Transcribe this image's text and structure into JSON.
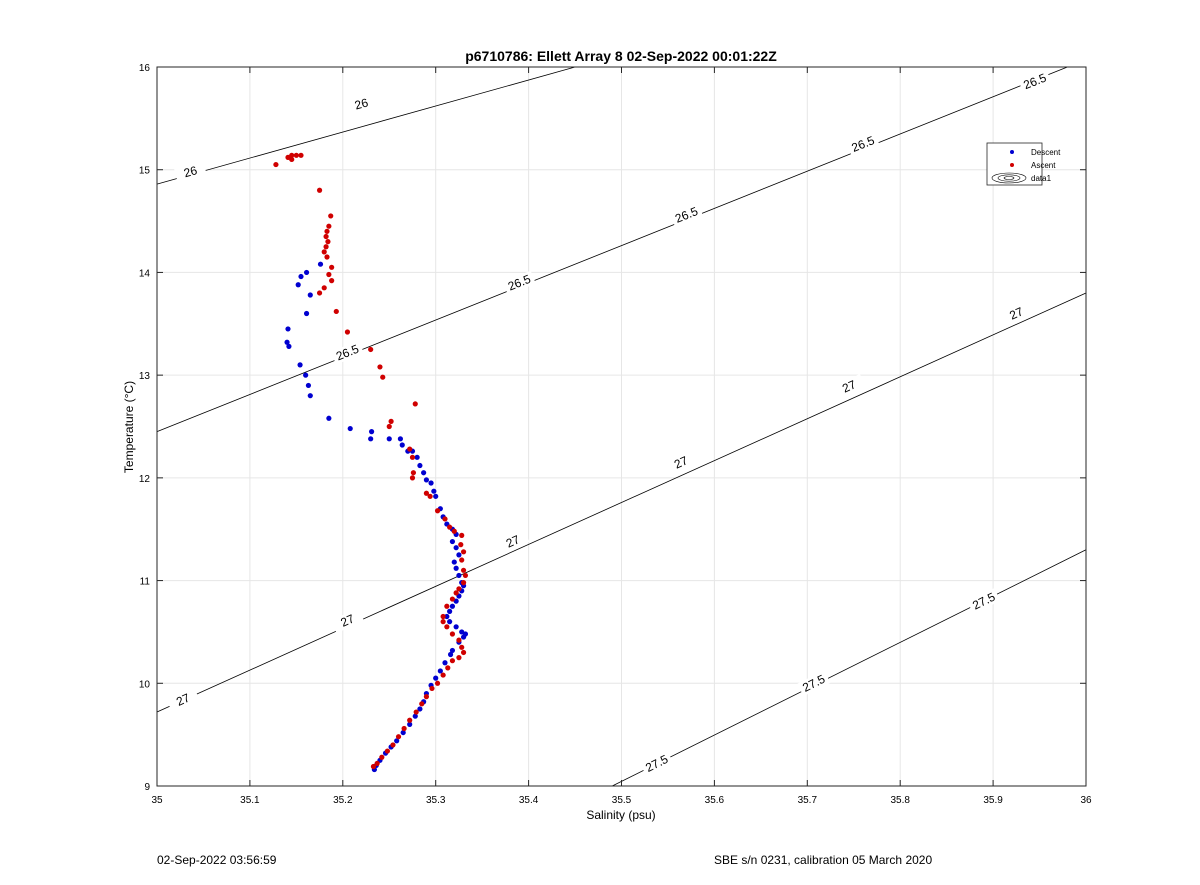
{
  "chart_data": {
    "type": "scatter",
    "title": "p6710786: Ellett Array 8 02-Sep-2022 00:01:22Z",
    "xlabel": "Salinity (psu)",
    "ylabel": "Temperature (°C)",
    "xlim": [
      35,
      36
    ],
    "ylim": [
      9,
      16
    ],
    "xticks": [
      35,
      35.1,
      35.2,
      35.3,
      35.4,
      35.5,
      35.6,
      35.7,
      35.8,
      35.9,
      36
    ],
    "yticks": [
      9,
      10,
      11,
      12,
      13,
      14,
      15,
      16
    ],
    "xtick_labels": [
      "35",
      "35.1",
      "35.2",
      "35.3",
      "35.4",
      "35.5",
      "35.6",
      "35.7",
      "35.8",
      "35.9",
      "36"
    ],
    "ytick_labels": [
      "9",
      "10",
      "11",
      "12",
      "13",
      "14",
      "15",
      "16"
    ],
    "grid": true,
    "legend_position": "top-right",
    "legend": [
      {
        "label": "Descent",
        "color": "#0000d0",
        "marker": "dot"
      },
      {
        "label": "Ascent",
        "color": "#d00000",
        "marker": "dot"
      },
      {
        "label": "data1",
        "marker": "contour"
      }
    ],
    "contours": [
      {
        "level": "26",
        "line": [
          [
            35.0,
            14.86
          ],
          [
            35.45,
            16.0
          ]
        ],
        "labels": [
          {
            "text": "26",
            "at": [
              35.036,
              14.98
            ]
          },
          {
            "text": "26",
            "at": [
              35.22,
              15.64
            ]
          }
        ]
      },
      {
        "level": "26.5",
        "line": [
          [
            35.0,
            12.45
          ],
          [
            35.98,
            16.0
          ]
        ],
        "labels": [
          {
            "text": "26.5",
            "at": [
              35.205,
              13.22
            ]
          },
          {
            "text": "26.5",
            "at": [
              35.39,
              13.9
            ]
          },
          {
            "text": "26.5",
            "at": [
              35.57,
              14.56
            ]
          },
          {
            "text": "26.5",
            "at": [
              35.76,
              15.25
            ]
          },
          {
            "text": "26.5",
            "at": [
              35.945,
              15.86
            ]
          }
        ]
      },
      {
        "level": "27",
        "line": [
          [
            35.0,
            9.72
          ],
          [
            36.0,
            13.8
          ]
        ],
        "labels": [
          {
            "text": "27",
            "at": [
              35.028,
              9.84
            ]
          },
          {
            "text": "27",
            "at": [
              35.205,
              10.61
            ]
          },
          {
            "text": "27",
            "at": [
              35.383,
              11.38
            ]
          },
          {
            "text": "27",
            "at": [
              35.564,
              12.15
            ]
          },
          {
            "text": "27",
            "at": [
              35.745,
              12.89
            ]
          },
          {
            "text": "27",
            "at": [
              35.925,
              13.6
            ]
          }
        ]
      },
      {
        "level": "27.5",
        "line": [
          [
            35.49,
            9.0
          ],
          [
            36.0,
            11.3
          ]
        ],
        "labels": [
          {
            "text": "27.5",
            "at": [
              35.538,
              9.22
            ]
          },
          {
            "text": "27.5",
            "at": [
              35.707,
              10.0
            ]
          },
          {
            "text": "27.5",
            "at": [
              35.89,
              10.8
            ]
          }
        ]
      }
    ],
    "series": [
      {
        "name": "Descent",
        "color": "#0000d0",
        "points": [
          [
            35.176,
            14.08
          ],
          [
            35.161,
            14.0
          ],
          [
            35.155,
            13.96
          ],
          [
            35.152,
            13.88
          ],
          [
            35.165,
            13.78
          ],
          [
            35.161,
            13.6
          ],
          [
            35.141,
            13.45
          ],
          [
            35.14,
            13.32
          ],
          [
            35.142,
            13.28
          ],
          [
            35.154,
            13.1
          ],
          [
            35.16,
            13.0
          ],
          [
            35.163,
            12.9
          ],
          [
            35.165,
            12.8
          ],
          [
            35.185,
            12.58
          ],
          [
            35.208,
            12.48
          ],
          [
            35.231,
            12.45
          ],
          [
            35.23,
            12.38
          ],
          [
            35.25,
            12.38
          ],
          [
            35.262,
            12.38
          ],
          [
            35.264,
            12.32
          ],
          [
            35.27,
            12.26
          ],
          [
            35.275,
            12.26
          ],
          [
            35.28,
            12.2
          ],
          [
            35.283,
            12.12
          ],
          [
            35.287,
            12.05
          ],
          [
            35.29,
            11.98
          ],
          [
            35.295,
            11.95
          ],
          [
            35.298,
            11.87
          ],
          [
            35.3,
            11.82
          ],
          [
            35.305,
            11.7
          ],
          [
            35.308,
            11.62
          ],
          [
            35.312,
            11.55
          ],
          [
            35.318,
            11.5
          ],
          [
            35.322,
            11.45
          ],
          [
            35.318,
            11.38
          ],
          [
            35.322,
            11.32
          ],
          [
            35.325,
            11.25
          ],
          [
            35.32,
            11.18
          ],
          [
            35.322,
            11.12
          ],
          [
            35.325,
            11.05
          ],
          [
            35.328,
            10.98
          ],
          [
            35.33,
            10.95
          ],
          [
            35.328,
            10.9
          ],
          [
            35.325,
            10.85
          ],
          [
            35.322,
            10.8
          ],
          [
            35.318,
            10.75
          ],
          [
            35.315,
            10.7
          ],
          [
            35.312,
            10.65
          ],
          [
            35.315,
            10.6
          ],
          [
            35.322,
            10.55
          ],
          [
            35.328,
            10.5
          ],
          [
            35.332,
            10.48
          ],
          [
            35.33,
            10.45
          ],
          [
            35.325,
            10.4
          ],
          [
            35.318,
            10.32
          ],
          [
            35.316,
            10.28
          ],
          [
            35.31,
            10.2
          ],
          [
            35.305,
            10.12
          ],
          [
            35.3,
            10.05
          ],
          [
            35.295,
            9.98
          ],
          [
            35.29,
            9.9
          ],
          [
            35.287,
            9.82
          ],
          [
            35.283,
            9.75
          ],
          [
            35.278,
            9.68
          ],
          [
            35.272,
            9.6
          ],
          [
            35.265,
            9.52
          ],
          [
            35.258,
            9.44
          ],
          [
            35.252,
            9.38
          ],
          [
            35.246,
            9.32
          ],
          [
            35.24,
            9.25
          ],
          [
            35.236,
            9.2
          ],
          [
            35.234,
            9.16
          ]
        ]
      },
      {
        "name": "Ascent",
        "color": "#d00000",
        "points": [
          [
            35.128,
            15.05
          ],
          [
            35.141,
            15.12
          ],
          [
            35.145,
            15.14
          ],
          [
            35.15,
            15.14
          ],
          [
            35.155,
            15.14
          ],
          [
            35.145,
            15.1
          ],
          [
            35.175,
            14.8
          ],
          [
            35.187,
            14.55
          ],
          [
            35.185,
            14.45
          ],
          [
            35.183,
            14.4
          ],
          [
            35.182,
            14.35
          ],
          [
            35.184,
            14.3
          ],
          [
            35.182,
            14.25
          ],
          [
            35.18,
            14.2
          ],
          [
            35.183,
            14.15
          ],
          [
            35.188,
            14.05
          ],
          [
            35.185,
            13.98
          ],
          [
            35.188,
            13.92
          ],
          [
            35.18,
            13.85
          ],
          [
            35.175,
            13.8
          ],
          [
            35.193,
            13.62
          ],
          [
            35.205,
            13.42
          ],
          [
            35.23,
            13.25
          ],
          [
            35.24,
            13.08
          ],
          [
            35.243,
            12.98
          ],
          [
            35.278,
            12.72
          ],
          [
            35.252,
            12.55
          ],
          [
            35.25,
            12.5
          ],
          [
            35.272,
            12.28
          ],
          [
            35.275,
            12.2
          ],
          [
            35.276,
            12.05
          ],
          [
            35.275,
            12.0
          ],
          [
            35.29,
            11.85
          ],
          [
            35.294,
            11.82
          ],
          [
            35.302,
            11.68
          ],
          [
            35.31,
            11.6
          ],
          [
            35.315,
            11.52
          ],
          [
            35.32,
            11.48
          ],
          [
            35.328,
            11.44
          ],
          [
            35.327,
            11.35
          ],
          [
            35.33,
            11.28
          ],
          [
            35.328,
            11.2
          ],
          [
            35.33,
            11.1
          ],
          [
            35.332,
            11.05
          ],
          [
            35.33,
            10.98
          ],
          [
            35.325,
            10.92
          ],
          [
            35.322,
            10.88
          ],
          [
            35.318,
            10.82
          ],
          [
            35.312,
            10.75
          ],
          [
            35.308,
            10.65
          ],
          [
            35.308,
            10.6
          ],
          [
            35.312,
            10.55
          ],
          [
            35.318,
            10.48
          ],
          [
            35.325,
            10.42
          ],
          [
            35.328,
            10.35
          ],
          [
            35.33,
            10.3
          ],
          [
            35.325,
            10.25
          ],
          [
            35.318,
            10.22
          ],
          [
            35.313,
            10.15
          ],
          [
            35.308,
            10.08
          ],
          [
            35.302,
            10.0
          ],
          [
            35.296,
            9.95
          ],
          [
            35.29,
            9.87
          ],
          [
            35.285,
            9.8
          ],
          [
            35.279,
            9.72
          ],
          [
            35.272,
            9.64
          ],
          [
            35.266,
            9.56
          ],
          [
            35.26,
            9.48
          ],
          [
            35.254,
            9.4
          ],
          [
            35.248,
            9.34
          ],
          [
            35.242,
            9.28
          ],
          [
            35.237,
            9.22
          ],
          [
            35.233,
            9.19
          ]
        ]
      }
    ]
  },
  "footer": {
    "left": "02-Sep-2022 03:56:59",
    "right": "SBE s/n 0231, calibration 05 March 2020"
  }
}
